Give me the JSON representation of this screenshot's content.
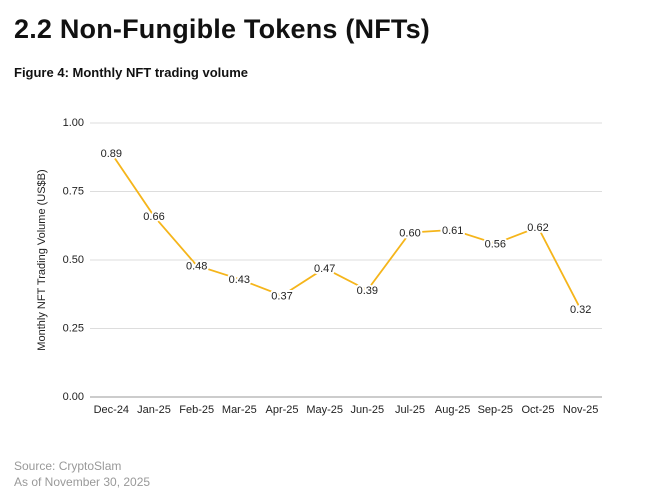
{
  "heading": "2.2 Non-Fungible Tokens (NFTs)",
  "chart_data": {
    "type": "line",
    "title": "Figure 4: Monthly NFT trading volume",
    "y_label": "Monthly NFT Trading Volume (US$B)",
    "categories": [
      "Dec-24",
      "Jan-25",
      "Feb-25",
      "Mar-25",
      "Apr-25",
      "May-25",
      "Jun-25",
      "Jul-25",
      "Aug-25",
      "Sep-25",
      "Oct-25",
      "Nov-25"
    ],
    "values": [
      0.89,
      0.66,
      0.48,
      0.43,
      0.37,
      0.47,
      0.39,
      0.6,
      0.61,
      0.56,
      0.62,
      0.32
    ],
    "value_labels": [
      "0.89",
      "0.66",
      "0.48",
      "0.43",
      "0.37",
      "0.47",
      "0.39",
      "0.60",
      "0.61",
      "0.56",
      "0.62",
      "0.32"
    ],
    "color": "#f5b51b",
    "ylim": [
      0,
      1
    ],
    "yticks": [
      {
        "value": 0,
        "label": "0.00"
      },
      {
        "value": 0.25,
        "label": "0.25"
      },
      {
        "value": 0.5,
        "label": "0.50"
      },
      {
        "value": 0.75,
        "label": "0.75"
      },
      {
        "value": 1,
        "label": "1.00"
      }
    ],
    "grid": true
  },
  "footer": [
    "Source: CryptoSlam",
    "As of November 30, 2025"
  ]
}
